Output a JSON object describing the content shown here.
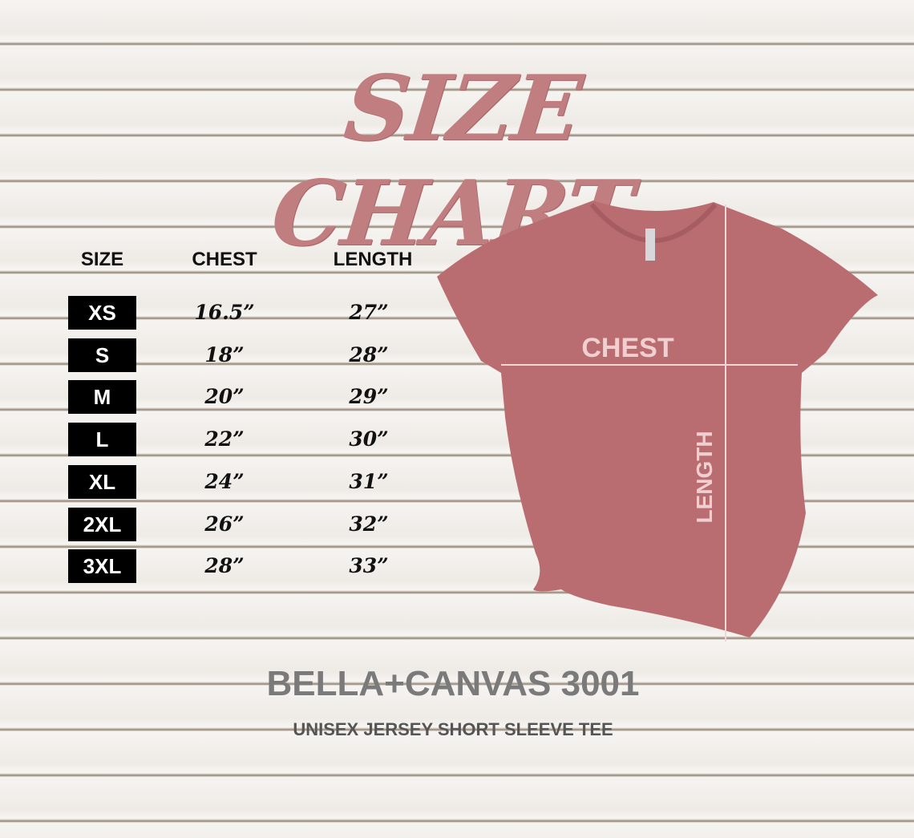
{
  "title": "SIZE CHART",
  "table": {
    "headers": [
      "SIZE",
      "CHEST",
      "LENGTH"
    ],
    "rows": [
      {
        "size": "XS",
        "chest": "16.5”",
        "length": "27”"
      },
      {
        "size": "S",
        "chest": "18”",
        "length": "28”"
      },
      {
        "size": "M",
        "chest": "20”",
        "length": "29”"
      },
      {
        "size": "L",
        "chest": "22”",
        "length": "30”"
      },
      {
        "size": "XL",
        "chest": "24”",
        "length": "31”"
      },
      {
        "size": "2XL",
        "chest": "26”",
        "length": "32”"
      },
      {
        "size": "3XL",
        "chest": "28”",
        "length": "33”"
      }
    ]
  },
  "diagram": {
    "chest_label": "CHEST",
    "length_label": "LENGTH",
    "shirt_color": "#b96d70"
  },
  "brand": "BELLA+CANVAS 3001",
  "subtitle": "UNISEX JERSEY SHORT SLEEVE TEE",
  "colors": {
    "title": "#c17e80",
    "badge": "#000000",
    "brand": "#7a7a7a"
  }
}
